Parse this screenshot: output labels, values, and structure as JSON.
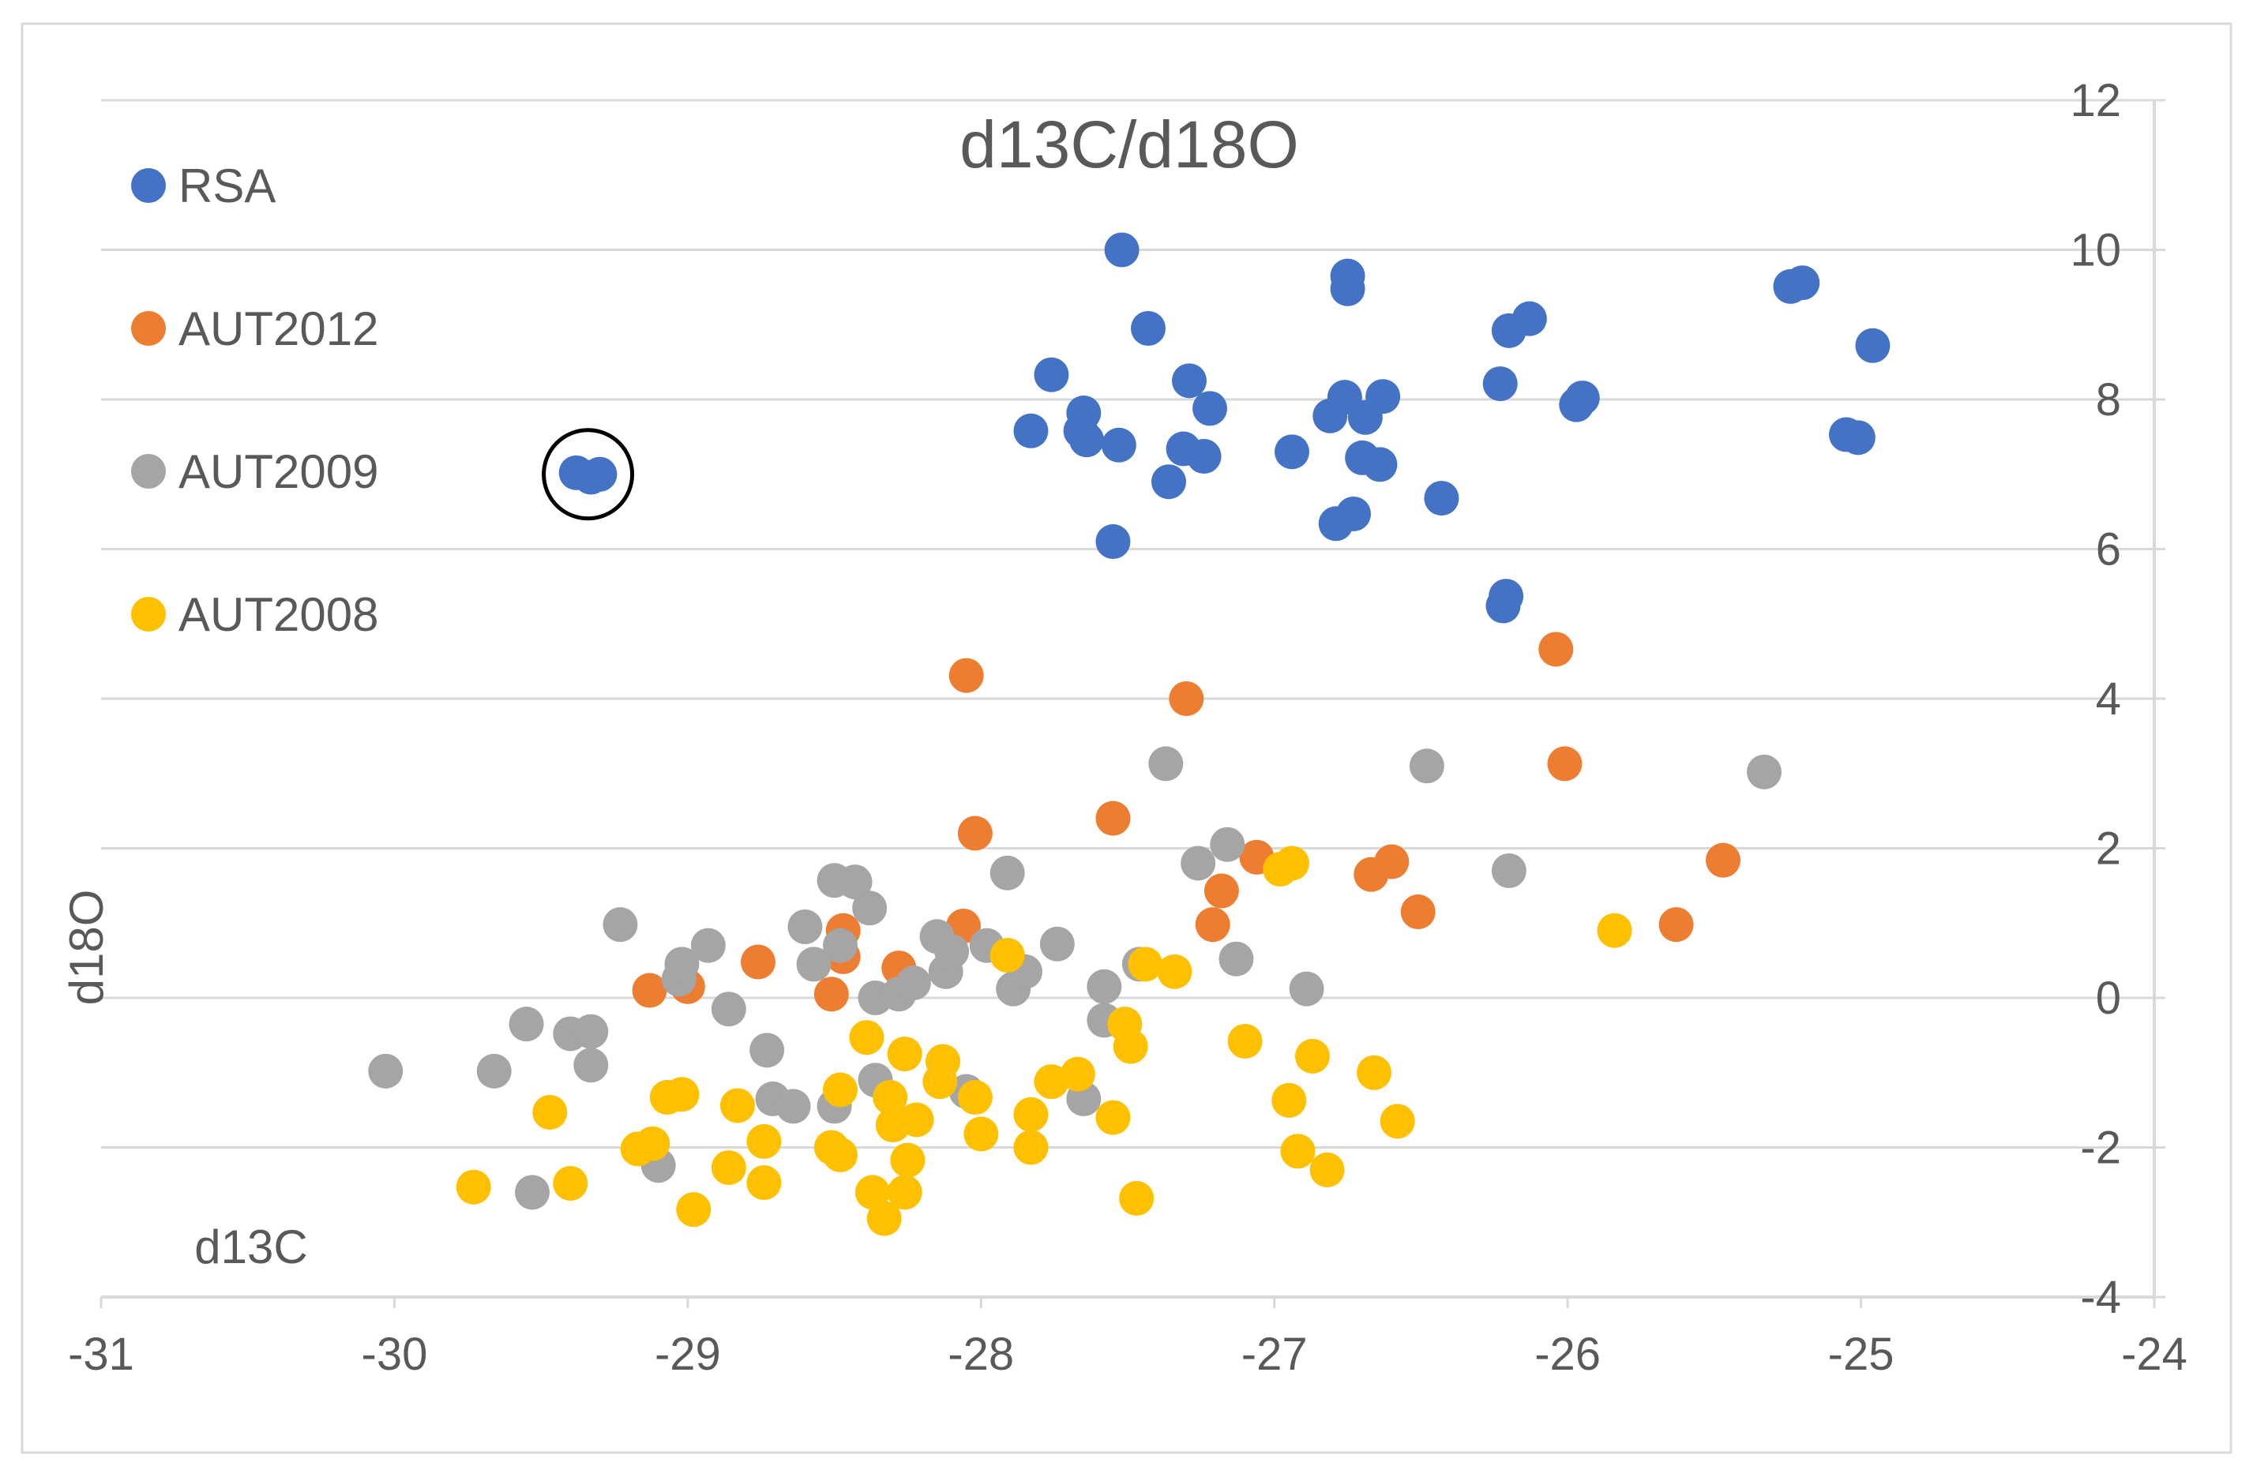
{
  "chart_data": {
    "type": "scatter",
    "title": "d13C/d18O",
    "xlabel": "d13C",
    "ylabel": "d18O",
    "xlim": [
      -31,
      -24
    ],
    "ylim": [
      -4,
      12
    ],
    "x_ticks": [
      -31,
      -30,
      -29,
      -28,
      -27,
      -26,
      -25,
      -24
    ],
    "y_ticks": [
      -4,
      -2,
      0,
      2,
      4,
      6,
      8,
      10,
      12
    ],
    "x_tick_labels": [
      "-31",
      "-30",
      "-29",
      "-28",
      "-27",
      "-26",
      "-25",
      "-24"
    ],
    "y_tick_labels": [
      "-4",
      "-2",
      "0",
      "2",
      "4",
      "6",
      "8",
      "10",
      "12"
    ],
    "y_axis_position": "right",
    "gridlines": "horizontal",
    "legend_position": "top-left",
    "annotation": "circle around outlier RSA points near (-29.35, 7.0)",
    "series": [
      {
        "name": "RSA",
        "color": "#4472C4",
        "points": [
          [
            -29.38,
            7.02
          ],
          [
            -29.3,
            7.0
          ],
          [
            -29.33,
            6.96
          ],
          [
            -27.52,
            10.0
          ],
          [
            -27.43,
            8.95
          ],
          [
            -27.76,
            8.33
          ],
          [
            -27.83,
            7.58
          ],
          [
            -27.65,
            7.82
          ],
          [
            -27.66,
            7.58
          ],
          [
            -27.64,
            7.46
          ],
          [
            -27.53,
            7.39
          ],
          [
            -27.29,
            8.25
          ],
          [
            -27.22,
            7.88
          ],
          [
            -27.31,
            7.34
          ],
          [
            -27.24,
            7.24
          ],
          [
            -27.36,
            6.9
          ],
          [
            -27.55,
            6.1
          ],
          [
            -26.94,
            7.3
          ],
          [
            -26.75,
            9.65
          ],
          [
            -26.75,
            9.48
          ],
          [
            -26.76,
            8.03
          ],
          [
            -26.81,
            7.78
          ],
          [
            -26.69,
            7.76
          ],
          [
            -26.63,
            8.04
          ],
          [
            -26.7,
            7.22
          ],
          [
            -26.64,
            7.13
          ],
          [
            -26.73,
            6.47
          ],
          [
            -26.79,
            6.34
          ],
          [
            -26.43,
            6.68
          ],
          [
            -26.23,
            8.21
          ],
          [
            -26.2,
            8.92
          ],
          [
            -26.13,
            9.08
          ],
          [
            -25.97,
            7.93
          ],
          [
            -25.95,
            8.02
          ],
          [
            -26.21,
            5.37
          ],
          [
            -26.22,
            5.24
          ],
          [
            -25.24,
            9.51
          ],
          [
            -25.2,
            9.56
          ],
          [
            -25.05,
            7.53
          ],
          [
            -25.01,
            7.49
          ],
          [
            -24.96,
            8.72
          ]
        ]
      },
      {
        "name": "AUT2012",
        "color": "#ED7D31",
        "points": [
          [
            -28.05,
            4.31
          ],
          [
            -27.3,
            4.0
          ],
          [
            -28.02,
            2.2
          ],
          [
            -27.55,
            2.4
          ],
          [
            -27.06,
            1.88
          ],
          [
            -27.18,
            1.43
          ],
          [
            -27.21,
            0.98
          ],
          [
            -26.67,
            1.65
          ],
          [
            -26.6,
            1.82
          ],
          [
            -26.51,
            1.15
          ],
          [
            -26.04,
            4.66
          ],
          [
            -26.01,
            3.13
          ],
          [
            -25.63,
            0.98
          ],
          [
            -25.47,
            1.84
          ],
          [
            -29.13,
            0.1
          ],
          [
            -29.0,
            0.15
          ],
          [
            -28.76,
            0.48
          ],
          [
            -28.51,
            0.05
          ],
          [
            -28.47,
            0.55
          ],
          [
            -28.47,
            0.9
          ],
          [
            -28.28,
            0.4
          ],
          [
            -28.06,
            0.96
          ]
        ]
      },
      {
        "name": "AUT2009",
        "color": "#A5A5A5",
        "points": [
          [
            -30.03,
            -0.98
          ],
          [
            -29.66,
            -0.98
          ],
          [
            -29.55,
            -0.35
          ],
          [
            -29.53,
            -2.6
          ],
          [
            -29.4,
            -0.48
          ],
          [
            -29.33,
            -0.45
          ],
          [
            -29.33,
            -0.9
          ],
          [
            -29.23,
            0.98
          ],
          [
            -29.1,
            -2.24
          ],
          [
            -29.03,
            0.25
          ],
          [
            -29.02,
            0.45
          ],
          [
            -28.93,
            0.7
          ],
          [
            -28.86,
            -0.15
          ],
          [
            -28.73,
            -0.7
          ],
          [
            -28.71,
            -1.35
          ],
          [
            -28.64,
            -1.45
          ],
          [
            -28.6,
            0.95
          ],
          [
            -28.57,
            0.45
          ],
          [
            -28.5,
            1.57
          ],
          [
            -28.5,
            -1.45
          ],
          [
            -28.48,
            0.7
          ],
          [
            -28.43,
            1.55
          ],
          [
            -28.38,
            1.2
          ],
          [
            -28.36,
            0.0
          ],
          [
            -28.36,
            -1.1
          ],
          [
            -28.28,
            0.05
          ],
          [
            -28.23,
            0.2
          ],
          [
            -28.15,
            0.82
          ],
          [
            -28.12,
            0.35
          ],
          [
            -28.1,
            0.62
          ],
          [
            -28.05,
            -1.25
          ],
          [
            -27.98,
            0.7
          ],
          [
            -27.91,
            1.67
          ],
          [
            -27.89,
            0.12
          ],
          [
            -27.85,
            0.35
          ],
          [
            -27.74,
            0.72
          ],
          [
            -27.65,
            -1.35
          ],
          [
            -27.58,
            0.15
          ],
          [
            -27.58,
            -0.3
          ],
          [
            -27.46,
            0.45
          ],
          [
            -27.37,
            3.13
          ],
          [
            -27.26,
            1.8
          ],
          [
            -27.16,
            2.05
          ],
          [
            -27.13,
            0.52
          ],
          [
            -26.89,
            0.12
          ],
          [
            -26.48,
            3.1
          ],
          [
            -26.2,
            1.7
          ],
          [
            -25.33,
            3.02
          ]
        ]
      },
      {
        "name": "AUT2008",
        "color": "#FFC000",
        "points": [
          [
            -29.73,
            -2.53
          ],
          [
            -29.47,
            -1.53
          ],
          [
            -29.4,
            -2.48
          ],
          [
            -29.17,
            -2.02
          ],
          [
            -29.12,
            -1.95
          ],
          [
            -29.07,
            -1.33
          ],
          [
            -29.02,
            -1.29
          ],
          [
            -28.98,
            -2.83
          ],
          [
            -28.86,
            -2.27
          ],
          [
            -28.83,
            -1.44
          ],
          [
            -28.74,
            -1.92
          ],
          [
            -28.74,
            -2.47
          ],
          [
            -28.51,
            -2.0
          ],
          [
            -28.48,
            -2.1
          ],
          [
            -28.48,
            -1.23
          ],
          [
            -28.39,
            -0.53
          ],
          [
            -28.37,
            -2.6
          ],
          [
            -28.33,
            -2.95
          ],
          [
            -28.31,
            -1.33
          ],
          [
            -28.3,
            -1.7
          ],
          [
            -28.26,
            -0.75
          ],
          [
            -28.26,
            -2.6
          ],
          [
            -28.25,
            -2.17
          ],
          [
            -28.22,
            -1.63
          ],
          [
            -28.14,
            -1.12
          ],
          [
            -28.13,
            -0.85
          ],
          [
            -28.02,
            -1.33
          ],
          [
            -28.0,
            -1.82
          ],
          [
            -27.91,
            0.57
          ],
          [
            -27.83,
            -1.56
          ],
          [
            -27.83,
            -2.0
          ],
          [
            -27.76,
            -1.12
          ],
          [
            -27.67,
            -1.02
          ],
          [
            -27.55,
            -1.6
          ],
          [
            -27.51,
            -0.35
          ],
          [
            -27.49,
            -0.65
          ],
          [
            -27.47,
            -2.68
          ],
          [
            -27.44,
            0.45
          ],
          [
            -27.34,
            0.35
          ],
          [
            -27.1,
            -0.58
          ],
          [
            -26.98,
            1.72
          ],
          [
            -26.94,
            1.8
          ],
          [
            -26.95,
            -1.37
          ],
          [
            -26.92,
            -2.05
          ],
          [
            -26.87,
            -0.78
          ],
          [
            -26.82,
            -2.3
          ],
          [
            -26.66,
            -1.0
          ],
          [
            -26.58,
            -1.65
          ],
          [
            -25.84,
            0.9
          ]
        ]
      }
    ]
  }
}
